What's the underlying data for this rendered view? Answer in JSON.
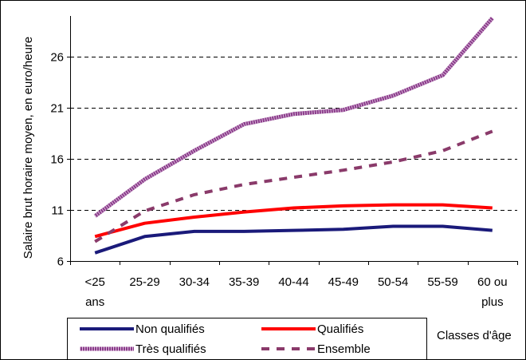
{
  "chart_data": {
    "type": "line",
    "ylabel": "Salaire brut horaire moyen, en euro/heure",
    "xlabel": "Classes d'âge",
    "ylim": [
      6,
      30
    ],
    "yticks": [
      6,
      11,
      16,
      21,
      26
    ],
    "grid": "horizontal dashed",
    "legend_position": "bottom",
    "categories": [
      [
        "<25",
        "ans"
      ],
      [
        "25-29"
      ],
      [
        "30-34"
      ],
      [
        "35-39"
      ],
      [
        "40-44"
      ],
      [
        "45-49"
      ],
      [
        "50-54"
      ],
      [
        "55-59"
      ],
      [
        "60 ou",
        "plus"
      ]
    ],
    "series": [
      {
        "name": "Non qualifiés",
        "color": "#1a1a7a",
        "style": "solid",
        "values": [
          6.8,
          8.4,
          8.9,
          8.9,
          9.0,
          9.1,
          9.4,
          9.4,
          9.0
        ]
      },
      {
        "name": "Qualifiés",
        "color": "#ff0000",
        "style": "solid",
        "values": [
          8.4,
          9.7,
          10.3,
          10.8,
          11.2,
          11.4,
          11.5,
          11.5,
          11.2
        ]
      },
      {
        "name": "Très qualifiés",
        "color": "#8a3a8a",
        "style": "hatched",
        "values": [
          10.4,
          14.0,
          16.8,
          19.4,
          20.4,
          20.8,
          22.2,
          24.2,
          29.8
        ]
      },
      {
        "name": "Ensemble",
        "color": "#8a3a6a",
        "style": "dashed",
        "values": [
          7.9,
          10.9,
          12.5,
          13.5,
          14.2,
          14.9,
          15.7,
          16.8,
          18.7
        ]
      }
    ]
  }
}
